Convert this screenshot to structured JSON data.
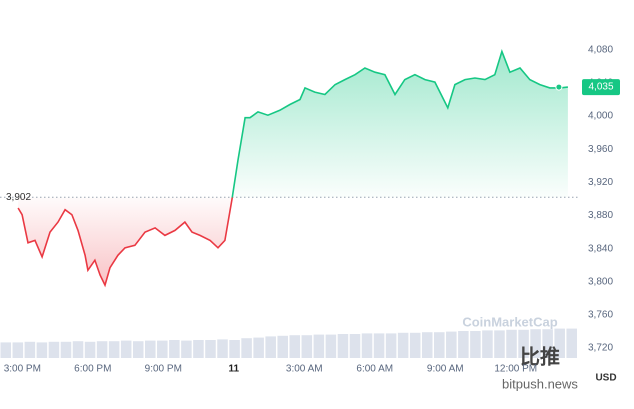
{
  "chart_data": {
    "type": "line",
    "x": [
      14.82,
      14.99,
      15.24,
      15.54,
      15.84,
      16.18,
      16.52,
      16.82,
      17.11,
      17.37,
      17.67,
      17.79,
      18.09,
      18.31,
      18.52,
      18.73,
      19.07,
      19.37,
      19.79,
      20.22,
      20.65,
      21.07,
      21.5,
      21.92,
      22.22,
      22.56,
      22.99,
      23.33,
      23.62,
      23.92,
      24.18,
      24.48,
      24.69,
      25.03,
      25.45,
      25.96,
      26.39,
      26.82,
      27.03,
      27.45,
      27.88,
      28.31,
      28.73,
      29.16,
      29.58,
      30.01,
      30.43,
      30.86,
      31.28,
      31.71,
      32.14,
      32.56,
      33.11,
      33.41,
      33.84,
      34.26,
      34.69,
      35.11,
      35.41,
      35.75,
      36.18,
      36.6,
      37.03,
      37.45,
      37.88,
      38.22
    ],
    "series": [
      {
        "color_up": "#16c784",
        "color_down": "#ea3943",
        "values": [
          3889,
          3881,
          3847,
          3850,
          3830,
          3860,
          3872,
          3887,
          3881,
          3862,
          3832,
          3814,
          3826,
          3808,
          3796,
          3817,
          3832,
          3841,
          3844,
          3860,
          3865,
          3856,
          3862,
          3872,
          3860,
          3856,
          3850,
          3841,
          3850,
          3899,
          3947,
          3998,
          3998,
          4005,
          4001,
          4007,
          4014,
          4020,
          4034,
          4029,
          4026,
          4038,
          4044,
          4050,
          4058,
          4053,
          4050,
          4026,
          4044,
          4050,
          4044,
          4041,
          4010,
          4038,
          4044,
          4046,
          4044,
          4050,
          4078,
          4053,
          4058,
          4044,
          4038,
          4034,
          4034,
          4035
        ]
      }
    ],
    "baseline": {
      "value": 3902,
      "label": "3,902"
    },
    "price_tag": {
      "value": 4035,
      "label": "4,035"
    },
    "xlim": [
      14.05,
      38.65
    ],
    "ylim": [
      3708,
      4122
    ],
    "xticks": [
      {
        "value": 15,
        "label": "3:00 PM"
      },
      {
        "value": 18,
        "label": "6:00 PM"
      },
      {
        "value": 21,
        "label": "9:00 PM"
      },
      {
        "value": 24,
        "label": "11"
      },
      {
        "value": 27,
        "label": "3:00 AM"
      },
      {
        "value": 30,
        "label": "6:00 AM"
      },
      {
        "value": 33,
        "label": "9:00 AM"
      },
      {
        "value": 36,
        "label": "12:00 PM"
      }
    ],
    "yticks": [
      {
        "value": 3720,
        "label": "3,720"
      },
      {
        "value": 3760,
        "label": "3,760"
      },
      {
        "value": 3800,
        "label": "3,800"
      },
      {
        "value": 3840,
        "label": "3,840"
      },
      {
        "value": 3880,
        "label": "3,880"
      },
      {
        "value": 3920,
        "label": "3,920"
      },
      {
        "value": 3960,
        "label": "3,960"
      },
      {
        "value": 4000,
        "label": "4,000"
      },
      {
        "value": 4040,
        "label": "4,040"
      },
      {
        "value": 4080,
        "label": "4,080"
      }
    ],
    "currency": "USD",
    "volume": {
      "color": "#cfd6e4",
      "lim": [
        0,
        100
      ],
      "values": [
        26,
        26,
        27,
        26,
        27,
        27,
        28,
        27,
        28,
        28,
        29,
        28,
        29,
        29,
        30,
        29,
        30,
        30,
        31,
        30,
        33,
        34,
        36,
        37,
        38,
        38,
        39,
        39,
        40,
        40,
        41,
        41,
        41,
        42,
        42,
        43,
        43,
        44,
        45,
        45,
        46,
        46,
        47,
        47,
        48,
        48,
        49,
        49
      ]
    },
    "watermarks": [
      "CoinMarketCap",
      "比推",
      "bitpush.news"
    ]
  }
}
